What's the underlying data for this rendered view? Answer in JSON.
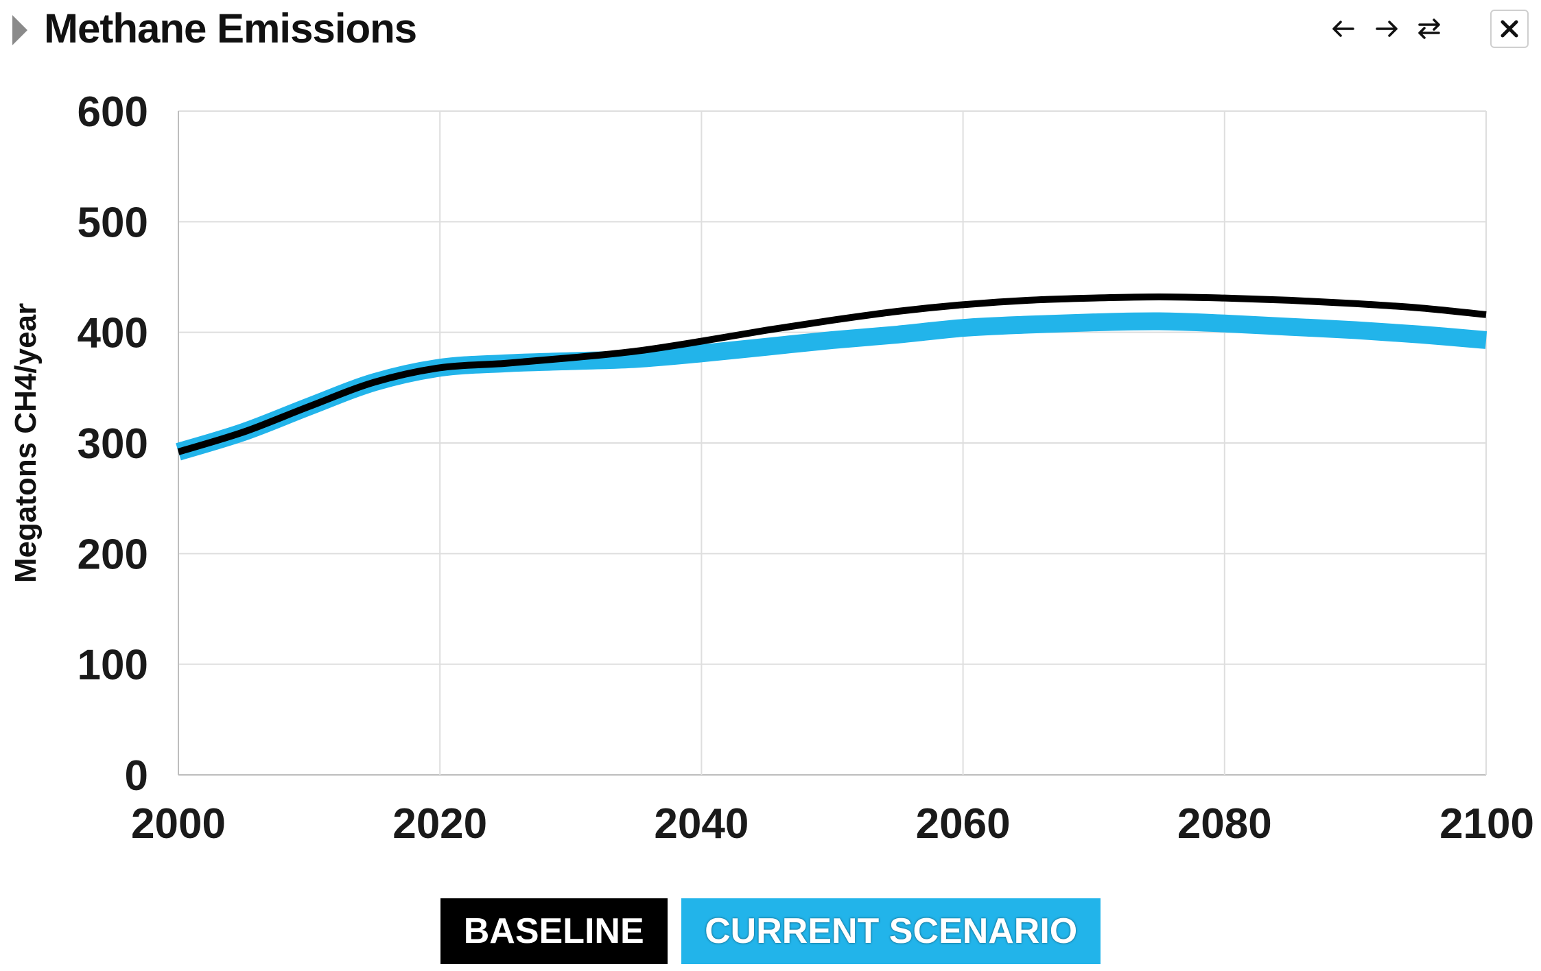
{
  "header": {
    "title": "Methane Emissions",
    "icons": [
      "expand-triangle-icon",
      "arrow-left-icon",
      "arrow-right-icon",
      "swap-icon",
      "close-icon"
    ]
  },
  "legend": {
    "baseline_label": "BASELINE",
    "current_label": "CURRENT SCENARIO"
  },
  "chart_data": {
    "type": "line",
    "title": "Methane Emissions",
    "xlabel": "",
    "ylabel": "Megatons CH4/year",
    "xlim": [
      2000,
      2100
    ],
    "ylim": [
      0,
      600
    ],
    "xticks": [
      "2000",
      "2020",
      "2040",
      "2060",
      "2080",
      "2100"
    ],
    "yticks": [
      "0",
      "100",
      "200",
      "300",
      "400",
      "500",
      "600"
    ],
    "grid": true,
    "legend_position": "bottom",
    "x": [
      2000,
      2005,
      2010,
      2015,
      2020,
      2025,
      2030,
      2035,
      2040,
      2045,
      2050,
      2055,
      2060,
      2065,
      2070,
      2075,
      2080,
      2085,
      2090,
      2095,
      2100
    ],
    "series": [
      {
        "name": "BASELINE",
        "color": "#000000",
        "values": [
          292,
          310,
          333,
          355,
          368,
          372,
          377,
          383,
          392,
          402,
          411,
          419,
          425,
          429,
          431,
          432,
          431,
          429,
          426,
          422,
          416
        ]
      },
      {
        "name": "CURRENT SCENARIO",
        "color": "#22b4ea",
        "values": [
          292,
          310,
          333,
          355,
          368,
          372,
          374,
          376,
          381,
          387,
          393,
          398,
          404,
          407,
          409,
          410,
          408,
          405,
          402,
          398,
          393
        ]
      }
    ]
  }
}
